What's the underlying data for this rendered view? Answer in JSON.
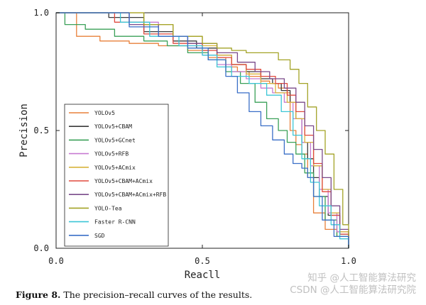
{
  "caption": {
    "label": "Figure 8.",
    "text": "The precision–recall curves of the results."
  },
  "watermark": {
    "line1": "知乎 @人工智能算法研究",
    "line2": "CSDN @人工智能算法研究院"
  },
  "chart_data": {
    "type": "line",
    "title": "",
    "xlabel": "Reacll",
    "ylabel": "Precision",
    "xlim": [
      0,
      1
    ],
    "ylim": [
      0,
      1
    ],
    "xticks": [
      "0.0",
      "0.5",
      "1.0"
    ],
    "yticks": [
      "0.0",
      "0.5",
      "1.0"
    ],
    "grid": false,
    "legend_position": "left",
    "series": [
      {
        "name": "YOLOv5",
        "color": "#e8803a",
        "x": [
          0,
          0.07,
          0.07,
          0.15,
          0.25,
          0.35,
          0.45,
          0.52,
          0.58,
          0.62,
          0.66,
          0.7,
          0.73,
          0.76,
          0.79,
          0.8,
          0.82,
          0.84,
          0.86,
          0.88,
          0.92,
          0.96,
          1.0
        ],
        "y": [
          1.0,
          1.0,
          0.9,
          0.88,
          0.87,
          0.86,
          0.84,
          0.81,
          0.77,
          0.75,
          0.73,
          0.71,
          0.7,
          0.68,
          0.66,
          0.5,
          0.44,
          0.4,
          0.3,
          0.15,
          0.08,
          0.05,
          0.0
        ]
      },
      {
        "name": "YOLOv5+CBAM",
        "color": "#3a3a3a",
        "x": [
          0,
          0.15,
          0.18,
          0.3,
          0.4,
          0.48,
          0.55,
          0.6,
          0.65,
          0.7,
          0.74,
          0.77,
          0.8,
          0.82,
          0.84,
          0.86,
          0.88,
          0.9,
          0.93,
          0.97,
          1.0
        ],
        "y": [
          1.0,
          1.0,
          0.98,
          0.92,
          0.88,
          0.85,
          0.82,
          0.78,
          0.75,
          0.72,
          0.7,
          0.67,
          0.62,
          0.55,
          0.45,
          0.38,
          0.3,
          0.22,
          0.14,
          0.06,
          0.0
        ]
      },
      {
        "name": "YOLOv5+GCnet",
        "color": "#3aa058",
        "x": [
          0,
          0.03,
          0.03,
          0.1,
          0.2,
          0.3,
          0.38,
          0.45,
          0.52,
          0.58,
          0.63,
          0.68,
          0.72,
          0.76,
          0.79,
          0.82,
          0.85,
          0.88,
          0.92,
          0.96,
          1.0
        ],
        "y": [
          1.0,
          1.0,
          0.95,
          0.93,
          0.9,
          0.88,
          0.86,
          0.83,
          0.8,
          0.75,
          0.7,
          0.62,
          0.55,
          0.5,
          0.45,
          0.4,
          0.32,
          0.22,
          0.12,
          0.05,
          0.0
        ]
      },
      {
        "name": "YOLOv5+RFB",
        "color": "#c77ad1",
        "x": [
          0,
          0.18,
          0.25,
          0.35,
          0.45,
          0.5,
          0.55,
          0.6,
          0.65,
          0.7,
          0.74,
          0.78,
          0.81,
          0.84,
          0.87,
          0.9,
          0.93,
          0.96,
          1.0
        ],
        "y": [
          1.0,
          1.0,
          0.96,
          0.9,
          0.86,
          0.82,
          0.78,
          0.75,
          0.72,
          0.68,
          0.66,
          0.62,
          0.55,
          0.45,
          0.35,
          0.25,
          0.15,
          0.07,
          0.0
        ]
      },
      {
        "name": "YOLOv5+ACmix",
        "color": "#d8b43c",
        "x": [
          0,
          0.2,
          0.3,
          0.4,
          0.5,
          0.55,
          0.6,
          0.65,
          0.7,
          0.75,
          0.79,
          0.82,
          0.85,
          0.88,
          0.91,
          0.94,
          0.97,
          1.0
        ],
        "y": [
          1.0,
          1.0,
          0.95,
          0.9,
          0.86,
          0.82,
          0.78,
          0.74,
          0.7,
          0.66,
          0.62,
          0.55,
          0.45,
          0.35,
          0.25,
          0.15,
          0.07,
          0.0
        ]
      },
      {
        "name": "YOLOv5+CBAM+ACmix",
        "color": "#e04a3f",
        "x": [
          0,
          0.12,
          0.2,
          0.3,
          0.4,
          0.5,
          0.55,
          0.6,
          0.65,
          0.7,
          0.75,
          0.79,
          0.82,
          0.85,
          0.88,
          0.91,
          0.94,
          0.97,
          1.0
        ],
        "y": [
          1.0,
          1.0,
          0.96,
          0.91,
          0.87,
          0.84,
          0.81,
          0.78,
          0.76,
          0.73,
          0.7,
          0.65,
          0.58,
          0.48,
          0.36,
          0.24,
          0.14,
          0.06,
          0.0
        ]
      },
      {
        "name": "YOLOv5+CBAM+ACmix+RFB",
        "color": "#7a4a8a",
        "x": [
          0,
          0.18,
          0.25,
          0.35,
          0.45,
          0.55,
          0.62,
          0.68,
          0.73,
          0.78,
          0.82,
          0.85,
          0.88,
          0.91,
          0.94,
          0.97,
          1.0
        ],
        "y": [
          1.0,
          1.0,
          0.95,
          0.9,
          0.87,
          0.83,
          0.79,
          0.75,
          0.72,
          0.68,
          0.62,
          0.52,
          0.42,
          0.3,
          0.18,
          0.08,
          0.0
        ]
      },
      {
        "name": "YOLO-Tea",
        "color": "#a3a327",
        "x": [
          0,
          0.22,
          0.3,
          0.4,
          0.5,
          0.55,
          0.6,
          0.65,
          0.7,
          0.74,
          0.76,
          0.8,
          0.83,
          0.86,
          0.89,
          0.92,
          0.95,
          0.98,
          1.0
        ],
        "y": [
          1.0,
          1.0,
          0.95,
          0.9,
          0.87,
          0.85,
          0.84,
          0.83,
          0.83,
          0.83,
          0.8,
          0.76,
          0.7,
          0.6,
          0.5,
          0.4,
          0.25,
          0.1,
          0.0
        ]
      },
      {
        "name": "Faster R-CNN",
        "color": "#3cc6d6",
        "x": [
          0,
          0.15,
          0.22,
          0.32,
          0.42,
          0.5,
          0.55,
          0.6,
          0.66,
          0.72,
          0.77,
          0.81,
          0.84,
          0.87,
          0.9,
          0.94,
          0.97,
          1.0
        ],
        "y": [
          1.0,
          1.0,
          0.96,
          0.9,
          0.86,
          0.82,
          0.77,
          0.73,
          0.7,
          0.65,
          0.58,
          0.48,
          0.38,
          0.28,
          0.18,
          0.1,
          0.04,
          0.0
        ]
      },
      {
        "name": "SGD",
        "color": "#3a6fc7",
        "x": [
          0,
          0.18,
          0.25,
          0.35,
          0.45,
          0.52,
          0.58,
          0.62,
          0.66,
          0.7,
          0.74,
          0.78,
          0.81,
          0.84,
          0.86,
          0.88,
          0.91,
          0.95,
          1.0
        ],
        "y": [
          1.0,
          1.0,
          0.94,
          0.9,
          0.85,
          0.8,
          0.73,
          0.66,
          0.58,
          0.52,
          0.46,
          0.4,
          0.36,
          0.34,
          0.3,
          0.22,
          0.12,
          0.05,
          0.0
        ]
      }
    ]
  }
}
